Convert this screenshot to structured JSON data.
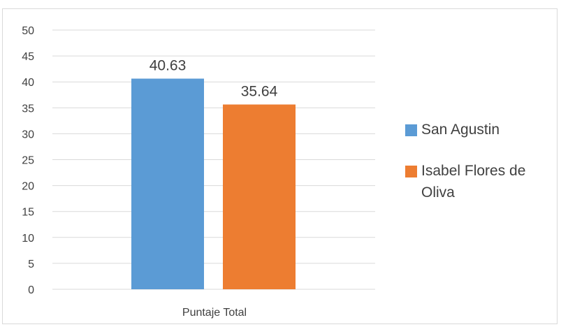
{
  "chart_data": {
    "type": "bar",
    "categories": [
      "Puntaje Total"
    ],
    "series": [
      {
        "name": "San Agustin",
        "values": [
          40.63
        ],
        "color": "#5b9bd5"
      },
      {
        "name": "Isabel Flores de Oliva",
        "values": [
          35.64
        ],
        "color": "#ed7d31"
      }
    ],
    "data_labels": [
      "40.63",
      "35.64"
    ],
    "y_ticks": [
      "0",
      "5",
      "10",
      "15",
      "20",
      "25",
      "30",
      "35",
      "40",
      "45",
      "50"
    ],
    "ylim": [
      0,
      50
    ],
    "grid": true,
    "legend_position": "right",
    "gridline_color": "#d9d9d9"
  }
}
